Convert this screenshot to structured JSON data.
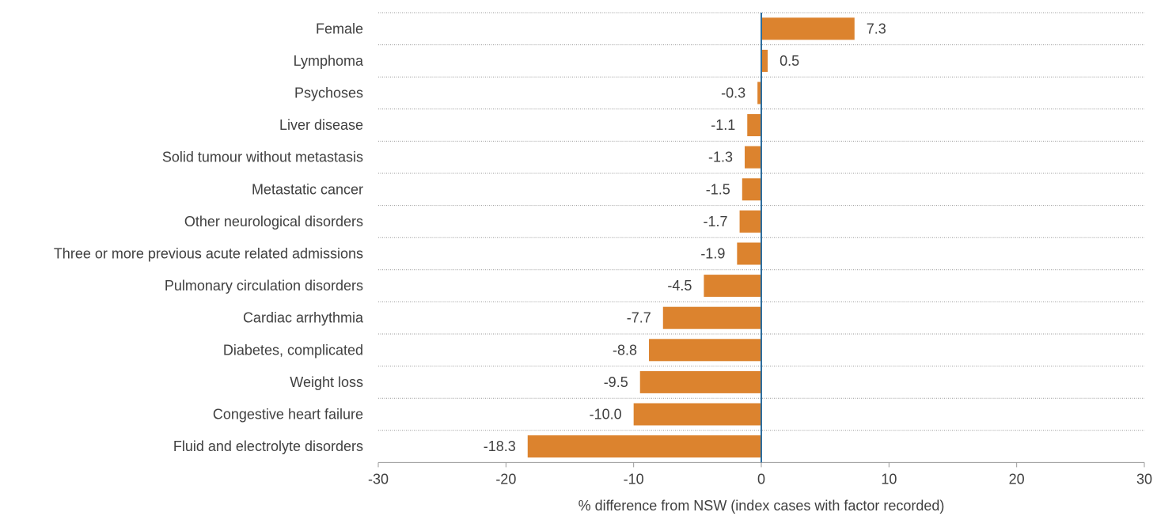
{
  "chart_data": {
    "type": "bar",
    "orientation": "horizontal",
    "categories": [
      "Female",
      "Lymphoma",
      "Psychoses",
      "Liver disease",
      "Solid tumour without metastasis",
      "Metastatic cancer",
      "Other neurological disorders",
      "Three or more previous acute related admissions",
      "Pulmonary circulation disorders",
      "Cardiac arrhythmia",
      "Diabetes, complicated",
      "Weight loss",
      "Congestive heart failure",
      "Fluid and electrolyte disorders"
    ],
    "values": [
      7.3,
      0.5,
      -0.3,
      -1.1,
      -1.3,
      -1.5,
      -1.7,
      -1.9,
      -4.5,
      -7.7,
      -8.8,
      -9.5,
      -10.0,
      -18.3
    ],
    "value_labels": [
      "7.3",
      "0.5",
      "-0.3",
      "-1.1",
      "-1.3",
      "-1.5",
      "-1.7",
      "-1.9",
      "-4.5",
      "-7.7",
      "-8.8",
      "-9.5",
      "-10.0",
      "-18.3"
    ],
    "xlabel": "% difference from NSW (index cases with factor recorded)",
    "xlim": [
      -30,
      30
    ],
    "xticks": [
      -30,
      -20,
      -10,
      0,
      10,
      20,
      30
    ],
    "grid": true,
    "colors": {
      "bar": "#dc832e",
      "zero_line": "#2e6e9e",
      "text": "#404040",
      "grid": "#9a9a9a"
    }
  }
}
